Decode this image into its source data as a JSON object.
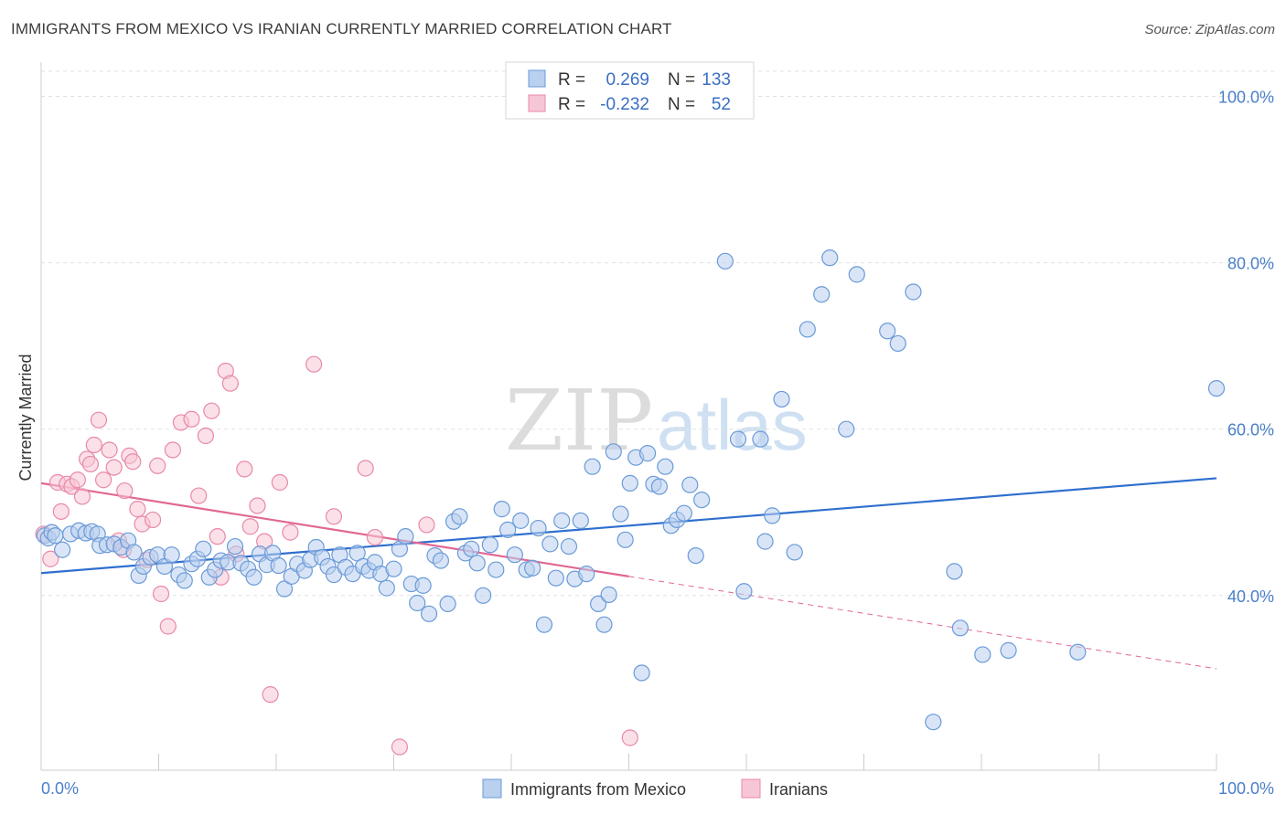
{
  "header": {
    "title": "IMMIGRANTS FROM MEXICO VS IRANIAN CURRENTLY MARRIED CORRELATION CHART",
    "source": "Source: ZipAtlas.com"
  },
  "colors": {
    "blue": "#6a9ad8",
    "blue_fill": "#b9d0ee",
    "blue_line": "#2f6fcf",
    "pink": "#e889a8",
    "pink_fill": "#f7c6d6",
    "pink_line": "#e06894",
    "grid": "#e2e2e2",
    "tick_text": "#4a7fc8"
  },
  "chart_data": {
    "type": "scatter",
    "title": "IMMIGRANTS FROM MEXICO VS IRANIAN CURRENTLY MARRIED CORRELATION CHART",
    "xlabel": "",
    "ylabel": "Currently Married",
    "xlim": [
      0,
      100
    ],
    "ylim": [
      19,
      105
    ],
    "x_tick_labels": [
      "0.0%",
      "100.0%"
    ],
    "y_ticks": [
      40,
      60,
      80,
      100
    ],
    "y_tick_labels": [
      "40.0%",
      "60.0%",
      "80.0%",
      "100.0%"
    ],
    "grid": true,
    "legend_position": "top-center",
    "stats": [
      {
        "r_label": "R =",
        "r": "0.269",
        "n_label": "N =",
        "n": "133"
      },
      {
        "r_label": "R =",
        "r": "-0.232",
        "n_label": "N =",
        "n": "52"
      }
    ],
    "series": [
      {
        "name": "Immigrants from Mexico",
        "trend": {
          "x": [
            0,
            100
          ],
          "y": [
            42.7,
            54.1
          ]
        },
        "points": [
          [
            0.3,
            47.2
          ],
          [
            0.6,
            46.9
          ],
          [
            0.9,
            47.6
          ],
          [
            1.2,
            47.2
          ],
          [
            1.8,
            45.5
          ],
          [
            2.5,
            47.4
          ],
          [
            3.2,
            47.8
          ],
          [
            3.8,
            47.5
          ],
          [
            4.3,
            47.7
          ],
          [
            4.8,
            47.4
          ],
          [
            5.0,
            46.0
          ],
          [
            5.6,
            46.1
          ],
          [
            6.2,
            46.2
          ],
          [
            6.8,
            45.8
          ],
          [
            7.4,
            46.6
          ],
          [
            7.9,
            45.2
          ],
          [
            8.3,
            42.4
          ],
          [
            8.7,
            43.5
          ],
          [
            9.3,
            44.6
          ],
          [
            9.9,
            44.9
          ],
          [
            10.5,
            43.5
          ],
          [
            11.1,
            44.9
          ],
          [
            11.7,
            42.5
          ],
          [
            12.2,
            41.8
          ],
          [
            12.8,
            43.8
          ],
          [
            13.3,
            44.4
          ],
          [
            13.8,
            45.6
          ],
          [
            14.3,
            42.2
          ],
          [
            14.8,
            43.1
          ],
          [
            15.3,
            44.2
          ],
          [
            15.9,
            44.0
          ],
          [
            16.5,
            45.9
          ],
          [
            17.0,
            43.9
          ],
          [
            17.6,
            43.2
          ],
          [
            18.1,
            42.2
          ],
          [
            18.6,
            45.0
          ],
          [
            19.2,
            43.7
          ],
          [
            19.7,
            45.1
          ],
          [
            20.2,
            43.6
          ],
          [
            20.7,
            40.8
          ],
          [
            21.3,
            42.3
          ],
          [
            21.8,
            43.8
          ],
          [
            22.4,
            43.0
          ],
          [
            22.9,
            44.3
          ],
          [
            23.4,
            45.8
          ],
          [
            23.9,
            44.6
          ],
          [
            24.4,
            43.5
          ],
          [
            24.9,
            42.5
          ],
          [
            25.4,
            44.9
          ],
          [
            25.9,
            43.4
          ],
          [
            26.5,
            42.6
          ],
          [
            26.9,
            45.1
          ],
          [
            27.4,
            43.5
          ],
          [
            27.9,
            43.0
          ],
          [
            28.4,
            44.0
          ],
          [
            28.9,
            42.6
          ],
          [
            29.4,
            40.9
          ],
          [
            30.0,
            43.2
          ],
          [
            30.5,
            45.6
          ],
          [
            31.0,
            47.1
          ],
          [
            31.5,
            41.4
          ],
          [
            32.0,
            39.1
          ],
          [
            32.5,
            41.2
          ],
          [
            33.0,
            37.8
          ],
          [
            33.5,
            44.8
          ],
          [
            34.0,
            44.2
          ],
          [
            34.6,
            39.0
          ],
          [
            35.1,
            48.9
          ],
          [
            35.6,
            49.5
          ],
          [
            36.1,
            45.1
          ],
          [
            36.6,
            45.6
          ],
          [
            37.1,
            43.9
          ],
          [
            37.6,
            40.0
          ],
          [
            38.2,
            46.1
          ],
          [
            38.7,
            43.1
          ],
          [
            39.2,
            50.4
          ],
          [
            39.7,
            47.9
          ],
          [
            40.3,
            44.9
          ],
          [
            40.8,
            49.0
          ],
          [
            41.3,
            43.1
          ],
          [
            41.8,
            43.3
          ],
          [
            42.3,
            48.1
          ],
          [
            42.8,
            36.5
          ],
          [
            43.3,
            46.2
          ],
          [
            43.8,
            42.1
          ],
          [
            44.3,
            49.0
          ],
          [
            44.9,
            45.9
          ],
          [
            45.4,
            42.0
          ],
          [
            45.9,
            49.0
          ],
          [
            46.4,
            42.6
          ],
          [
            46.9,
            55.5
          ],
          [
            47.4,
            39.0
          ],
          [
            47.9,
            36.5
          ],
          [
            48.3,
            40.1
          ],
          [
            48.7,
            57.3
          ],
          [
            49.3,
            49.8
          ],
          [
            49.7,
            46.7
          ],
          [
            50.1,
            53.5
          ],
          [
            50.6,
            56.6
          ],
          [
            51.1,
            30.7
          ],
          [
            51.6,
            57.1
          ],
          [
            52.1,
            53.4
          ],
          [
            52.6,
            53.1
          ],
          [
            53.1,
            55.5
          ],
          [
            53.6,
            48.4
          ],
          [
            54.1,
            49.1
          ],
          [
            54.7,
            49.9
          ],
          [
            55.2,
            53.3
          ],
          [
            55.7,
            44.8
          ],
          [
            56.2,
            51.5
          ],
          [
            58.2,
            80.2
          ],
          [
            59.3,
            58.8
          ],
          [
            59.8,
            40.5
          ],
          [
            61.2,
            58.8
          ],
          [
            61.6,
            46.5
          ],
          [
            62.2,
            49.6
          ],
          [
            63.0,
            63.6
          ],
          [
            64.1,
            45.2
          ],
          [
            65.2,
            72.0
          ],
          [
            66.4,
            76.2
          ],
          [
            67.1,
            80.6
          ],
          [
            68.5,
            60.0
          ],
          [
            69.4,
            78.6
          ],
          [
            72.0,
            71.8
          ],
          [
            72.9,
            70.3
          ],
          [
            74.2,
            76.5
          ],
          [
            75.9,
            24.8
          ],
          [
            77.7,
            42.9
          ],
          [
            78.2,
            36.1
          ],
          [
            80.1,
            32.9
          ],
          [
            82.3,
            33.4
          ],
          [
            88.2,
            33.2
          ],
          [
            100.0,
            64.9
          ]
        ]
      },
      {
        "name": "Iranians",
        "trend": {
          "x": [
            0,
            50
          ],
          "y": [
            53.5,
            42.3
          ]
        },
        "dashed": {
          "x": [
            50,
            100
          ],
          "y": [
            42.3,
            31.2
          ]
        },
        "points": [
          [
            0.2,
            47.4
          ],
          [
            0.8,
            44.4
          ],
          [
            1.4,
            53.6
          ],
          [
            1.7,
            50.1
          ],
          [
            2.2,
            53.4
          ],
          [
            2.6,
            53.1
          ],
          [
            3.1,
            53.9
          ],
          [
            3.5,
            51.9
          ],
          [
            3.9,
            56.4
          ],
          [
            4.2,
            55.8
          ],
          [
            4.5,
            58.1
          ],
          [
            4.9,
            61.1
          ],
          [
            5.3,
            53.9
          ],
          [
            5.8,
            57.5
          ],
          [
            6.2,
            55.4
          ],
          [
            6.6,
            46.6
          ],
          [
            7.1,
            52.6
          ],
          [
            7.5,
            56.8
          ],
          [
            7.8,
            56.1
          ],
          [
            8.2,
            50.4
          ],
          [
            8.6,
            48.6
          ],
          [
            9.0,
            44.3
          ],
          [
            9.5,
            49.1
          ],
          [
            9.9,
            55.6
          ],
          [
            10.2,
            40.2
          ],
          [
            10.8,
            36.3
          ],
          [
            11.2,
            57.5
          ],
          [
            11.9,
            60.8
          ],
          [
            12.8,
            61.2
          ],
          [
            13.4,
            52.0
          ],
          [
            14.0,
            59.2
          ],
          [
            14.5,
            62.2
          ],
          [
            15.0,
            47.1
          ],
          [
            15.3,
            42.2
          ],
          [
            15.7,
            67.0
          ],
          [
            16.1,
            65.5
          ],
          [
            16.6,
            45.0
          ],
          [
            17.3,
            55.2
          ],
          [
            17.8,
            48.3
          ],
          [
            18.4,
            50.8
          ],
          [
            19.0,
            46.5
          ],
          [
            19.5,
            28.1
          ],
          [
            20.3,
            53.6
          ],
          [
            21.2,
            47.6
          ],
          [
            23.2,
            67.8
          ],
          [
            24.9,
            49.5
          ],
          [
            27.6,
            55.3
          ],
          [
            28.4,
            47.0
          ],
          [
            30.5,
            21.8
          ],
          [
            32.8,
            48.5
          ],
          [
            50.1,
            22.9
          ],
          [
            7.0,
            45.5
          ]
        ]
      }
    ]
  },
  "bottom_legend": {
    "items": [
      {
        "label": "Immigrants from Mexico"
      },
      {
        "label": "Iranians"
      }
    ]
  }
}
